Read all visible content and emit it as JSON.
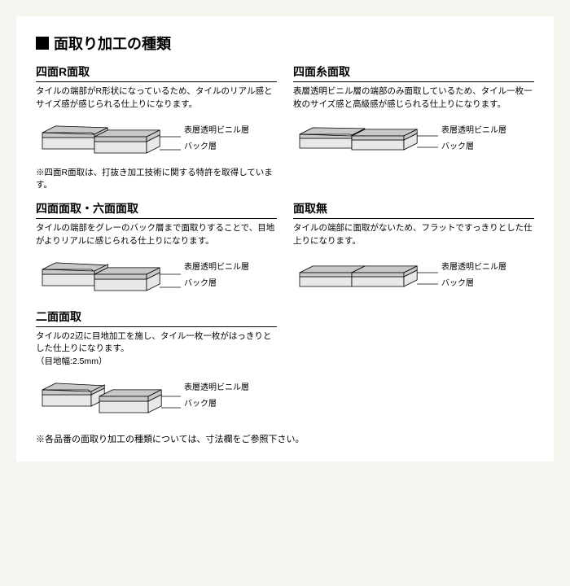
{
  "title": "面取り加工の種類",
  "label_top": "表層透明ビニル層",
  "label_bottom": "バック層",
  "colors": {
    "top_layer": "#c8c8c8",
    "back_layer": "#e8e8e8",
    "stroke": "#000000",
    "bg": "#ffffff"
  },
  "items": [
    {
      "title": "四面R面取",
      "desc": "タイルの端部がR形状になっているため、タイルのリアル感とサイズ感が感じられる仕上りになります。",
      "note": "※四面R面取は、打抜き加工技術に関する特許を取得しています。",
      "type": "r-chamfer"
    },
    {
      "title": "四面糸面取",
      "desc": "表層透明ビニル層の端部のみ面取しているため、タイル一枚一枚のサイズ感と高級感が感じられる仕上りになります。",
      "type": "thread"
    },
    {
      "title": "四面面取・六面面取",
      "desc": "タイルの端部をグレーのバック層まで面取りすることで、目地がよりリアルに感じられる仕上りになります。",
      "type": "chamfer"
    },
    {
      "title": "面取無",
      "desc": "タイルの端部に面取がないため、フラットですっきりとした仕上りになります。",
      "type": "none"
    },
    {
      "title": "二面面取",
      "desc": "タイルの2辺に目地加工を施し、タイル一枚一枚がはっきりとした仕上りになります。\n（目地幅:2.5mm）",
      "type": "two-side"
    }
  ],
  "footer": "※各品番の面取り加工の種類については、寸法欄をご参照下さい。"
}
